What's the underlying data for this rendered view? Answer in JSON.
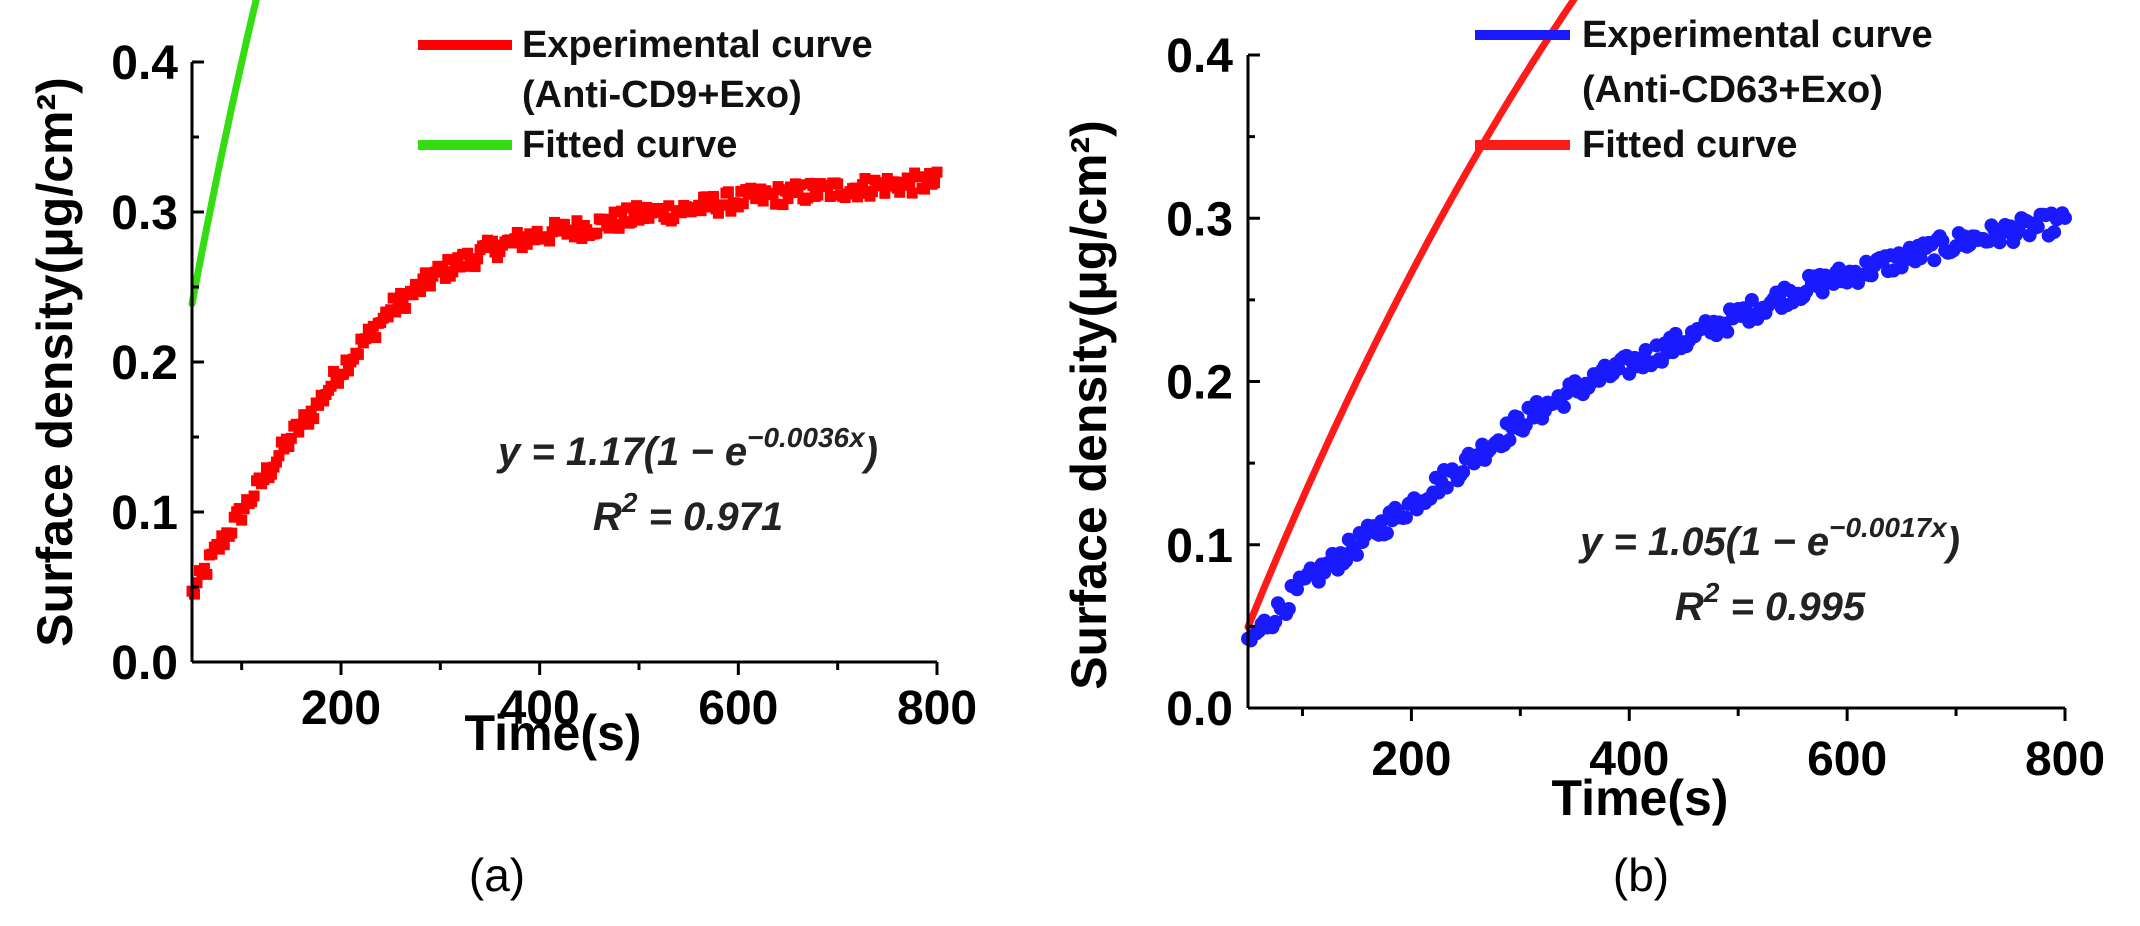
{
  "chart_data": [
    {
      "type": "scatter",
      "panel": "(a)",
      "xlabel": "Time(s)",
      "ylabel": "Surface density(μg/cm²)",
      "xlim": [
        50,
        800
      ],
      "ylim": [
        0.0,
        0.4
      ],
      "xticks": [
        "200",
        "400",
        "600",
        "800"
      ],
      "yticks": [
        "0.0",
        "0.1",
        "0.2",
        "0.3",
        "0.4"
      ],
      "legend": {
        "position": "top-right",
        "entries": [
          {
            "label_lines": [
              "Experimental curve",
              "(Anti-CD9+Exo)"
            ],
            "color": "#ff0000"
          },
          {
            "label_lines": [
              "Fitted curve"
            ],
            "color": "#33dd11"
          }
        ]
      },
      "equation": {
        "prefix": "y = 1.17(1 − e",
        "exponent": "−0.0036x",
        "suffix": ")",
        "r2_label": "R",
        "r2_sup": "2",
        "r2_value": " = 0.971"
      },
      "series": [
        {
          "name": "Experimental curve (Anti-CD9+Exo)",
          "color": "#ff0000",
          "marker": "square",
          "x": [
            50,
            75,
            100,
            125,
            150,
            175,
            200,
            250,
            300,
            350,
            400,
            450,
            500,
            550,
            600,
            650,
            700,
            750,
            800
          ],
          "y": [
            0.045,
            0.075,
            0.1,
            0.125,
            0.15,
            0.17,
            0.195,
            0.235,
            0.26,
            0.275,
            0.285,
            0.29,
            0.298,
            0.302,
            0.308,
            0.312,
            0.315,
            0.318,
            0.32
          ]
        },
        {
          "name": "Fitted curve",
          "color": "#33dd11",
          "model": {
            "A": 1.17,
            "k": 0.0036,
            "offset": 0.046
          }
        }
      ]
    },
    {
      "type": "scatter",
      "panel": "(b)",
      "xlabel": "Time(s)",
      "ylabel": "Surface density(μg/cm²)",
      "xlim": [
        50,
        800
      ],
      "ylim": [
        0.0,
        0.4
      ],
      "xticks": [
        "200",
        "400",
        "600",
        "800"
      ],
      "yticks": [
        "0.0",
        "0.1",
        "0.2",
        "0.3",
        "0.4"
      ],
      "legend": {
        "position": "top-right",
        "entries": [
          {
            "label_lines": [
              "Experimental curve",
              "(Anti-CD63+Exo)"
            ],
            "color": "#1a1aff"
          },
          {
            "label_lines": [
              "Fitted curve"
            ],
            "color": "#ff1a1a"
          }
        ]
      },
      "equation": {
        "prefix": "y = 1.05(1 − e",
        "exponent": "−0.0017x",
        "suffix": ")",
        "r2_label": "R",
        "r2_sup": "2",
        "r2_value": " = 0.995"
      },
      "series": [
        {
          "name": "Experimental curve (Anti-CD63+Exo)",
          "color": "#1a1aff",
          "marker": "circle",
          "x": [
            50,
            100,
            150,
            200,
            250,
            300,
            350,
            400,
            450,
            500,
            550,
            600,
            650,
            700,
            750,
            800
          ],
          "y": [
            0.04,
            0.075,
            0.1,
            0.125,
            0.15,
            0.175,
            0.195,
            0.21,
            0.225,
            0.24,
            0.255,
            0.265,
            0.275,
            0.285,
            0.292,
            0.298
          ]
        },
        {
          "name": "Fitted curve",
          "color": "#ff1a1a",
          "model": {
            "A": 1.05,
            "k": 0.0017,
            "offset": -0.036
          }
        }
      ]
    }
  ]
}
